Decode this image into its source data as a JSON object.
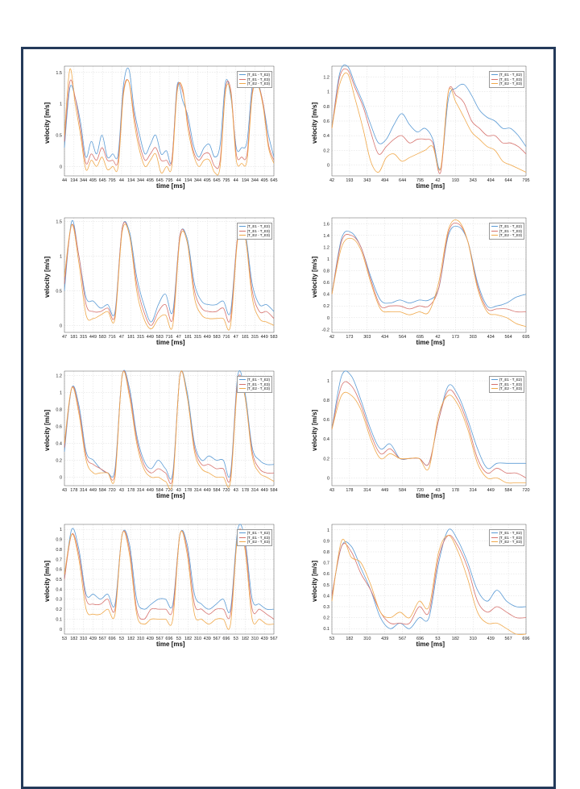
{
  "colors": {
    "frame": "#243a5a",
    "series": [
      "#5b9bd5",
      "#d6726d",
      "#f0a84a"
    ],
    "grid": "#dcdcdc",
    "axis": "#333333"
  },
  "legend_labels": [
    "(T_E1 - T_E2)",
    "(T_E1 - T_E3)",
    "(T_E2 - T_E3)"
  ],
  "chart_data": [
    {
      "type": "line",
      "xlabel": "time [ms]",
      "ylabel": "velocity [m/s]",
      "legend_position": "top-right",
      "x_tick_labels": [
        "44",
        "194",
        "344",
        "495",
        "645",
        "795",
        "44",
        "194",
        "344",
        "495",
        "645",
        "795",
        "44",
        "194",
        "344",
        "495",
        "645",
        "795",
        "44",
        "194",
        "344",
        "495",
        "645"
      ],
      "y_ticks": [
        0,
        0.5,
        1,
        1.5
      ],
      "ylim": [
        -0.15,
        1.6
      ],
      "series": [
        {
          "legend": 0,
          "values": [
            0.3,
            1.25,
            1.1,
            0.7,
            0.15,
            0.4,
            0.2,
            0.5,
            0.15,
            0.2,
            0.2,
            1.3,
            1.55,
            0.9,
            0.5,
            0.2,
            0.35,
            0.5,
            0.2,
            0.25,
            0.1,
            1.3,
            1.05,
            0.8,
            0.35,
            0.15,
            0.3,
            0.35,
            0.15,
            0.35,
            1.35,
            1.1,
            0.3,
            0.3,
            0.4,
            1.3,
            1.35,
            1.0,
            0.5,
            0.15
          ]
        },
        {
          "legend": 1,
          "values": [
            0.4,
            1.35,
            1.1,
            0.6,
            0.05,
            0.2,
            0.1,
            0.3,
            0.1,
            0.1,
            0.1,
            1.2,
            1.35,
            0.8,
            0.35,
            0.1,
            0.2,
            0.3,
            0.1,
            0.1,
            0.1,
            1.25,
            1.2,
            0.7,
            0.25,
            0.1,
            0.2,
            0.2,
            0.0,
            0.1,
            1.25,
            1.2,
            0.2,
            0.15,
            0.2,
            1.2,
            1.3,
            1.0,
            0.35,
            0.1
          ]
        },
        {
          "legend": 2,
          "values": [
            0.5,
            1.55,
            1.0,
            0.5,
            -0.05,
            0.1,
            0.0,
            0.15,
            -0.05,
            0.0,
            0.0,
            1.15,
            1.35,
            0.7,
            0.25,
            0.0,
            0.1,
            0.2,
            -0.1,
            0.0,
            0.0,
            1.2,
            1.25,
            0.6,
            0.2,
            0.0,
            0.1,
            0.1,
            -0.1,
            0.0,
            1.2,
            1.15,
            0.1,
            0.05,
            0.1,
            1.15,
            1.3,
            0.95,
            0.3,
            0.05
          ]
        }
      ]
    },
    {
      "type": "line",
      "xlabel": "time [ms]",
      "ylabel": "velocity [m/s]",
      "legend_position": "top-right",
      "x_tick_labels": [
        "42",
        "193",
        "343",
        "494",
        "644",
        "795",
        "42",
        "193",
        "343",
        "494",
        "644",
        "795"
      ],
      "y_ticks": [
        0,
        0.2,
        0.4,
        0.6,
        0.8,
        1,
        1.2
      ],
      "ylim": [
        -0.15,
        1.35
      ],
      "series": [
        {
          "legend": 0,
          "values": [
            0.5,
            1.25,
            1.35,
            1.1,
            0.85,
            0.55,
            0.3,
            0.35,
            0.55,
            0.7,
            0.55,
            0.45,
            0.5,
            0.35,
            -0.05,
            0.9,
            1.05,
            1.1,
            0.95,
            0.75,
            0.65,
            0.6,
            0.5,
            0.5,
            0.4,
            0.25
          ]
        },
        {
          "legend": 1,
          "values": [
            0.5,
            1.2,
            1.3,
            1.05,
            0.8,
            0.45,
            0.15,
            0.25,
            0.35,
            0.4,
            0.3,
            0.35,
            0.35,
            0.3,
            -0.1,
            1.0,
            0.95,
            0.85,
            0.6,
            0.5,
            0.4,
            0.4,
            0.3,
            0.3,
            0.25,
            0.15
          ]
        },
        {
          "legend": 2,
          "values": [
            0.5,
            1.1,
            1.25,
            0.9,
            0.5,
            0.05,
            -0.1,
            0.1,
            0.15,
            0.05,
            0.1,
            0.15,
            0.2,
            0.25,
            -0.05,
            1.0,
            0.85,
            0.65,
            0.45,
            0.35,
            0.25,
            0.2,
            0.05,
            0.0,
            -0.05,
            -0.1
          ]
        }
      ]
    },
    {
      "type": "line",
      "xlabel": "time [ms]",
      "ylabel": "velocity [m/s]",
      "legend_position": "top-right",
      "x_tick_labels": [
        "47",
        "181",
        "315",
        "449",
        "583",
        "716",
        "47",
        "181",
        "315",
        "449",
        "583",
        "716",
        "47",
        "181",
        "315",
        "449",
        "583",
        "716",
        "47",
        "181",
        "315",
        "449",
        "583"
      ],
      "y_ticks": [
        0,
        0.5,
        1,
        1.5
      ],
      "ylim": [
        -0.1,
        1.55
      ],
      "series": [
        {
          "legend": 0,
          "values": [
            0.5,
            1.5,
            1.0,
            0.4,
            0.35,
            0.25,
            0.3,
            0.2,
            1.4,
            1.35,
            0.7,
            0.3,
            0.05,
            0.3,
            0.45,
            0.2,
            1.3,
            1.25,
            0.6,
            0.35,
            0.3,
            0.3,
            0.35,
            0.2,
            1.3,
            1.35,
            0.6,
            0.3,
            0.3,
            0.2
          ]
        },
        {
          "legend": 1,
          "values": [
            0.6,
            1.45,
            1.0,
            0.3,
            0.2,
            0.2,
            0.25,
            0.15,
            1.4,
            1.3,
            0.6,
            0.2,
            0.0,
            0.2,
            0.3,
            0.1,
            1.3,
            1.2,
            0.5,
            0.25,
            0.2,
            0.2,
            0.25,
            0.1,
            1.3,
            1.3,
            0.5,
            0.2,
            0.2,
            0.1
          ]
        },
        {
          "legend": 2,
          "values": [
            0.7,
            1.45,
            0.9,
            0.15,
            0.1,
            0.15,
            0.2,
            0.1,
            1.35,
            1.3,
            0.5,
            0.1,
            -0.05,
            0.1,
            0.15,
            0.0,
            1.25,
            1.2,
            0.4,
            0.15,
            0.1,
            0.1,
            0.1,
            0.0,
            1.25,
            1.3,
            0.4,
            0.1,
            0.05,
            0.0
          ]
        }
      ]
    },
    {
      "type": "line",
      "xlabel": "time [ms]",
      "ylabel": "velocity [m/s]",
      "legend_position": "top-right",
      "x_tick_labels": [
        "42",
        "173",
        "303",
        "434",
        "564",
        "695",
        "42",
        "173",
        "303",
        "434",
        "564",
        "695"
      ],
      "y_ticks": [
        -0.2,
        0,
        0.2,
        0.4,
        0.6,
        0.8,
        1,
        1.2,
        1.4,
        1.6
      ],
      "ylim": [
        -0.25,
        1.7
      ],
      "series": [
        {
          "legend": 0,
          "values": [
            0.4,
            1.35,
            1.45,
            1.2,
            0.7,
            0.3,
            0.25,
            0.3,
            0.25,
            0.3,
            0.3,
            0.5,
            1.4,
            1.55,
            1.3,
            0.6,
            0.2,
            0.2,
            0.25,
            0.35,
            0.4
          ]
        },
        {
          "legend": 1,
          "values": [
            0.4,
            1.3,
            1.4,
            1.2,
            0.65,
            0.2,
            0.2,
            0.2,
            0.15,
            0.2,
            0.2,
            0.5,
            1.45,
            1.6,
            1.3,
            0.55,
            0.15,
            0.15,
            0.15,
            0.1,
            0.1
          ]
        },
        {
          "legend": 2,
          "values": [
            0.4,
            1.2,
            1.35,
            1.15,
            0.6,
            0.15,
            0.1,
            0.1,
            0.05,
            0.1,
            0.1,
            0.6,
            1.5,
            1.65,
            1.3,
            0.5,
            0.1,
            0.05,
            0.0,
            -0.1,
            -0.15
          ]
        }
      ]
    },
    {
      "type": "line",
      "xlabel": "time [ms]",
      "ylabel": "velocity [m/s]",
      "legend_position": "top-right",
      "x_tick_labels": [
        "43",
        "178",
        "314",
        "449",
        "584",
        "720",
        "43",
        "178",
        "314",
        "449",
        "584",
        "720",
        "43",
        "178",
        "314",
        "449",
        "584",
        "720",
        "43",
        "178",
        "314",
        "449",
        "584"
      ],
      "y_ticks": [
        0,
        0.2,
        0.4,
        0.6,
        0.8,
        1,
        1.2
      ],
      "ylim": [
        -0.1,
        1.25
      ],
      "series": [
        {
          "legend": 0,
          "values": [
            0.3,
            1.05,
            0.85,
            0.3,
            0.2,
            0.1,
            0.05,
            0.1,
            1.2,
            1.05,
            0.5,
            0.2,
            0.1,
            0.2,
            0.1,
            0.05,
            1.2,
            1.0,
            0.4,
            0.2,
            0.25,
            0.2,
            0.2,
            0.05,
            1.2,
            1.0,
            0.35,
            0.2,
            0.15,
            0.15
          ]
        },
        {
          "legend": 1,
          "values": [
            0.35,
            1.05,
            0.8,
            0.25,
            0.15,
            0.1,
            0.05,
            0.05,
            1.2,
            1.0,
            0.45,
            0.15,
            0.05,
            0.1,
            0.05,
            0.0,
            1.2,
            0.95,
            0.35,
            0.15,
            0.15,
            0.1,
            0.1,
            0.0,
            1.15,
            0.95,
            0.3,
            0.1,
            0.05,
            0.05
          ]
        },
        {
          "legend": 2,
          "values": [
            0.4,
            1.05,
            0.75,
            0.2,
            0.05,
            0.05,
            0.05,
            0.0,
            1.2,
            0.95,
            0.4,
            0.1,
            0.0,
            0.0,
            -0.05,
            -0.05,
            1.2,
            0.95,
            0.3,
            0.1,
            0.05,
            0.0,
            0.0,
            -0.05,
            1.1,
            0.95,
            0.25,
            0.05,
            0.0,
            -0.05
          ]
        }
      ]
    },
    {
      "type": "line",
      "xlabel": "time [ms]",
      "ylabel": "velocity [m/s]",
      "legend_position": "top-right",
      "x_tick_labels": [
        "43",
        "178",
        "314",
        "449",
        "584",
        "720",
        "43",
        "178",
        "314",
        "449",
        "584",
        "720"
      ],
      "y_ticks": [
        0,
        0.2,
        0.4,
        0.6,
        0.8,
        1
      ],
      "ylim": [
        -0.08,
        1.1
      ],
      "series": [
        {
          "legend": 0,
          "values": [
            0.5,
            1.05,
            1.05,
            0.8,
            0.5,
            0.3,
            0.35,
            0.2,
            0.2,
            0.2,
            0.15,
            0.6,
            0.95,
            0.85,
            0.6,
            0.3,
            0.1,
            0.15,
            0.15,
            0.15,
            0.15
          ]
        },
        {
          "legend": 1,
          "values": [
            0.5,
            0.95,
            0.95,
            0.75,
            0.45,
            0.25,
            0.3,
            0.2,
            0.2,
            0.2,
            0.15,
            0.6,
            0.9,
            0.8,
            0.55,
            0.2,
            0.05,
            0.1,
            0.05,
            0.05,
            0.0
          ]
        },
        {
          "legend": 2,
          "values": [
            0.5,
            0.85,
            0.85,
            0.7,
            0.4,
            0.2,
            0.25,
            0.2,
            0.2,
            0.2,
            0.1,
            0.65,
            0.85,
            0.75,
            0.5,
            0.15,
            0.0,
            0.0,
            -0.05,
            -0.05,
            -0.05
          ]
        }
      ]
    },
    {
      "type": "line",
      "xlabel": "time [ms]",
      "ylabel": "velocity [m/s]",
      "legend_position": "top-right",
      "x_tick_labels": [
        "53",
        "182",
        "310",
        "439",
        "567",
        "696",
        "53",
        "182",
        "310",
        "439",
        "567",
        "696",
        "53",
        "182",
        "310",
        "439",
        "567",
        "696",
        "53",
        "182",
        "310",
        "439",
        "567"
      ],
      "y_ticks": [
        0,
        0.1,
        0.2,
        0.3,
        0.4,
        0.5,
        0.6,
        0.7,
        0.8,
        0.9,
        1
      ],
      "ylim": [
        -0.05,
        1.05
      ],
      "series": [
        {
          "legend": 0,
          "values": [
            0.5,
            1.0,
            0.8,
            0.35,
            0.35,
            0.3,
            0.35,
            0.25,
            0.95,
            0.85,
            0.3,
            0.2,
            0.25,
            0.3,
            0.3,
            0.25,
            0.95,
            0.85,
            0.35,
            0.25,
            0.2,
            0.25,
            0.3,
            0.2,
            1.0,
            0.9,
            0.3,
            0.25,
            0.2,
            0.2
          ]
        },
        {
          "legend": 1,
          "values": [
            0.5,
            0.95,
            0.75,
            0.3,
            0.25,
            0.25,
            0.3,
            0.2,
            0.95,
            0.8,
            0.2,
            0.1,
            0.2,
            0.2,
            0.2,
            0.2,
            0.95,
            0.8,
            0.25,
            0.2,
            0.15,
            0.2,
            0.2,
            0.15,
            0.95,
            0.85,
            0.2,
            0.2,
            0.15,
            0.1
          ]
        },
        {
          "legend": 2,
          "values": [
            0.55,
            0.95,
            0.7,
            0.2,
            0.15,
            0.15,
            0.2,
            0.15,
            0.95,
            0.75,
            0.15,
            0.05,
            0.1,
            0.1,
            0.1,
            0.1,
            0.95,
            0.75,
            0.15,
            0.1,
            0.05,
            0.1,
            0.1,
            0.05,
            0.95,
            0.8,
            0.1,
            0.1,
            0.05,
            0.05
          ]
        }
      ]
    },
    {
      "type": "line",
      "xlabel": "time [ms]",
      "ylabel": "velocity [m/s]",
      "legend_position": "top-right",
      "x_tick_labels": [
        "53",
        "182",
        "310",
        "439",
        "567",
        "696",
        "53",
        "182",
        "310",
        "439",
        "567",
        "696"
      ],
      "y_ticks": [
        0.1,
        0.2,
        0.3,
        0.4,
        0.5,
        0.6,
        0.7,
        0.8,
        0.9,
        1
      ],
      "ylim": [
        0.05,
        1.05
      ],
      "series": [
        {
          "legend": 0,
          "values": [
            0.4,
            0.85,
            0.85,
            0.65,
            0.45,
            0.2,
            0.1,
            0.15,
            0.1,
            0.2,
            0.2,
            0.7,
            1.0,
            0.9,
            0.7,
            0.45,
            0.35,
            0.45,
            0.35,
            0.3,
            0.3
          ]
        },
        {
          "legend": 1,
          "values": [
            0.4,
            0.85,
            0.8,
            0.6,
            0.45,
            0.25,
            0.15,
            0.15,
            0.15,
            0.3,
            0.25,
            0.75,
            0.95,
            0.85,
            0.65,
            0.35,
            0.25,
            0.3,
            0.25,
            0.2,
            0.2
          ]
        },
        {
          "legend": 2,
          "values": [
            0.35,
            0.9,
            0.75,
            0.7,
            0.5,
            0.25,
            0.2,
            0.25,
            0.2,
            0.35,
            0.3,
            0.8,
            0.95,
            0.8,
            0.55,
            0.25,
            0.15,
            0.15,
            0.1,
            0.05,
            0.05
          ]
        }
      ]
    }
  ]
}
